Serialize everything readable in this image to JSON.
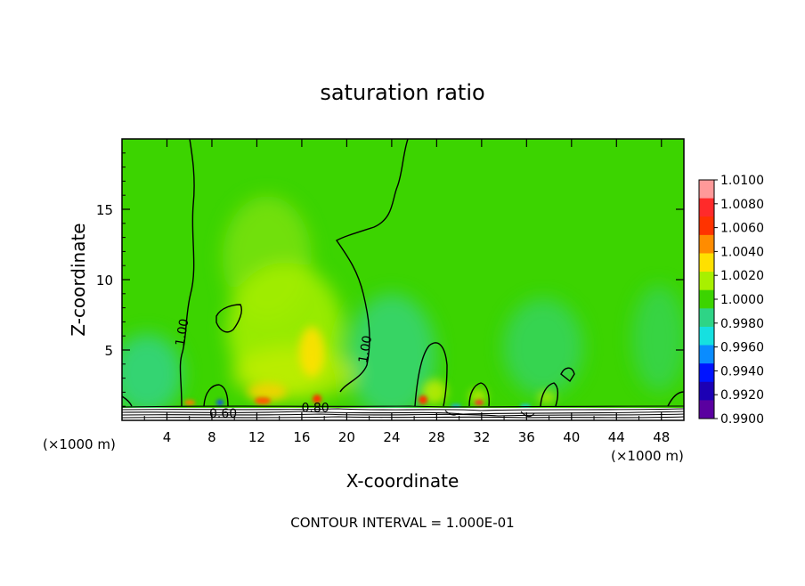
{
  "chart_data": {
    "type": "heatmap",
    "title": "saturation ratio",
    "xlabel": "X-coordinate",
    "ylabel": "Z-coordinate",
    "x_unit": "(×1000 m)",
    "y_unit": "(×1000 m)",
    "xlim": [
      0,
      50
    ],
    "ylim": [
      0,
      20
    ],
    "x_ticks": [
      4,
      8,
      12,
      16,
      20,
      24,
      28,
      32,
      36,
      40,
      44,
      48
    ],
    "y_ticks": [
      5,
      10,
      15
    ],
    "contour_interval_text": "CONTOUR INTERVAL = 1.000E-01",
    "contour_labels": [
      {
        "text": "1.00",
        "x": 5.7,
        "z": 6.2
      },
      {
        "text": "1.00",
        "x": 22.0,
        "z": 5.0
      },
      {
        "text": "0.60",
        "x": 9.0,
        "z": 0.2
      },
      {
        "text": "0.80",
        "x": 17.2,
        "z": 0.6
      }
    ],
    "colorbar": {
      "levels": [
        "1.0100",
        "1.0080",
        "1.0060",
        "1.0040",
        "1.0020",
        "1.0000",
        "0.9980",
        "0.9960",
        "0.9940",
        "0.9920",
        "0.9900"
      ],
      "colors": [
        "#ff9999",
        "#ff2a2a",
        "#ff3300",
        "#ff8c00",
        "#ffe000",
        "#a8f000",
        "#3cd400",
        "#2ed486",
        "#16e0e0",
        "#0a8cff",
        "#0014ff",
        "#1c00b4",
        "#5a00a0"
      ]
    },
    "background_level_color": "#3cd400"
  }
}
